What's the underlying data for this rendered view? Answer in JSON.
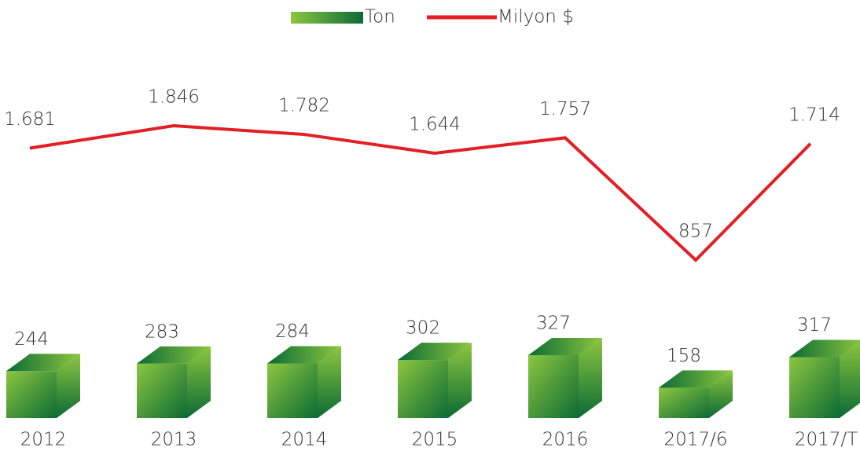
{
  "chart_data": {
    "type": "combo",
    "categories": [
      "2012",
      "2013",
      "2014",
      "2015",
      "2016",
      "2017/6",
      "2017/T"
    ],
    "series": [
      {
        "name": "Ton",
        "type": "bar",
        "color": [
          "#8cc63f",
          "#0b6b35"
        ],
        "values": [
          244,
          283,
          284,
          302,
          327,
          158,
          317
        ]
      },
      {
        "name": "Milyon $",
        "type": "line",
        "color": "#e31e24",
        "values": [
          1681,
          1846,
          1782,
          1644,
          1757,
          857,
          1714
        ],
        "value_labels": [
          "1.681",
          "1.846",
          "1.782",
          "1.644",
          "1.757",
          "857",
          "1.714"
        ]
      }
    ],
    "legend": "top"
  }
}
